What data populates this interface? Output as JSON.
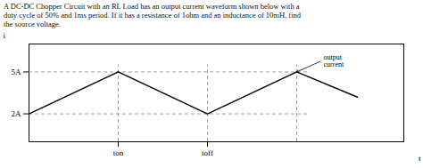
{
  "chart_data": {
    "type": "line",
    "title": "A DC-DC Chopper Circuit with an RL Load has an output current waveform shown below with a\nduty cycle of 50% and 1ms period. If it has a resistance of 1ohm and an inductance of 10mH, find\nthe source voltage.",
    "x_label": "t",
    "y_label": "i",
    "x": [
      0,
      0.25,
      0.5,
      0.75,
      0.92
    ],
    "values": [
      2,
      5,
      2,
      5,
      3.2
    ],
    "color": "#000000",
    "line_style": "solid",
    "xlim": [
      0,
      1.05
    ],
    "ylim": [
      0,
      7.0
    ],
    "xticks": [
      {
        "value": 0.25,
        "label": "ton"
      },
      {
        "value": 0.5,
        "label": "toff"
      }
    ],
    "yticks": [
      {
        "value": 2,
        "label": "2A"
      },
      {
        "value": 5,
        "label": "5A"
      }
    ],
    "grid": false,
    "hlines": [
      {
        "y": 5,
        "xmin": 0,
        "xmax": 0.78,
        "color": "#888888",
        "line_style": "dashed"
      },
      {
        "y": 2,
        "xmin": 0,
        "xmax": 0.78,
        "color": "#888888",
        "line_style": "dashed"
      }
    ],
    "vlines": [
      {
        "x": 0.25,
        "ymin": 0,
        "ymax": 5.5,
        "color": "#888888",
        "line_style": "dashed"
      },
      {
        "x": 0.5,
        "ymin": 0,
        "ymax": 5.5,
        "color": "#888888",
        "line_style": "dashed"
      },
      {
        "x": 0.75,
        "ymin": 0,
        "ymax": 5.5,
        "color": "#888888",
        "line_style": "dashed"
      }
    ],
    "annotations": [
      {
        "text": "output\ncurrent",
        "x": 0.75,
        "y": 5.0,
        "text_x": 0.82,
        "text_y": 5.8
      }
    ]
  }
}
